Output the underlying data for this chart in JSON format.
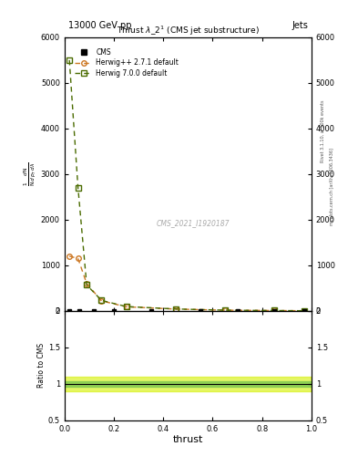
{
  "title": "Thrust $\\lambda\\_2^1$ (CMS jet substructure)",
  "top_left_label": "13000 GeV pp",
  "top_right_label": "Jets",
  "xlabel": "thrust",
  "ylabel_ratio": "Ratio to CMS",
  "right_label_top": "Rivet 3.1.10, ≥ 500k events",
  "right_label_bot": "mcplots.cern.ch [arXiv:1306.3436]",
  "watermark": "CMS_2021_I1920187",
  "herwig271_x": [
    0.02,
    0.055,
    0.09,
    0.15,
    0.25,
    0.45,
    0.65,
    0.85,
    0.97
  ],
  "herwig271_y": [
    1200,
    1150,
    600,
    220,
    90,
    40,
    15,
    8,
    3
  ],
  "herwig700_x": [
    0.02,
    0.055,
    0.09,
    0.15,
    0.25,
    0.45,
    0.65,
    0.85,
    0.97
  ],
  "herwig700_y": [
    5500,
    2700,
    570,
    230,
    95,
    42,
    16,
    8,
    3
  ],
  "cms_x": [
    0.02,
    0.06,
    0.12,
    0.2,
    0.35,
    0.55,
    0.7,
    0.85,
    0.97
  ],
  "cms_y": [
    2,
    2,
    2,
    2,
    2,
    2,
    2,
    2,
    2
  ],
  "herwig271_color": "#cc7722",
  "herwig700_color": "#4a6b00",
  "cms_color": "#000000",
  "ylim_main": [
    0,
    6000
  ],
  "ylim_ratio": [
    0.5,
    2.0
  ],
  "xlim": [
    0.0,
    1.0
  ],
  "yticks_main": [
    0,
    1000,
    2000,
    3000,
    4000,
    5000,
    6000
  ],
  "ytick_labels_main": [
    "0",
    "1000",
    "2000",
    "3000",
    "4000",
    "5000",
    "6000"
  ],
  "yticks_ratio": [
    0.5,
    1.0,
    1.5,
    2.0
  ],
  "ytick_labels_ratio": [
    "0.5",
    "1",
    "1.5",
    "2"
  ]
}
